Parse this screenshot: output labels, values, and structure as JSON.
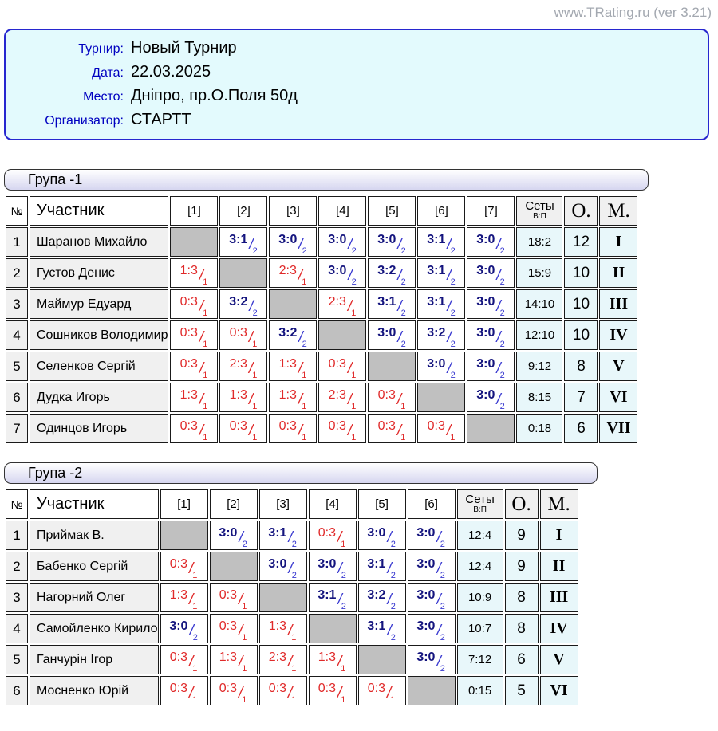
{
  "site": "www.TRating.ru (ver 3.21)",
  "info": {
    "tournament": {
      "label": "Турнир:",
      "value": "Новый Турнир"
    },
    "date": {
      "label": "Дата:",
      "value": "22.03.2025"
    },
    "place": {
      "label": "Место:",
      "value": "Дніпро, пр.О.Поля 50д"
    },
    "organizer": {
      "label": "Организатор:",
      "value": "СТАРТТ"
    }
  },
  "colors": {
    "win_score": "#14147e",
    "win_slash": "#3a3ad0",
    "loss_score": "#e02a2a",
    "diagonal_cell": "#c0c0c0",
    "summary_bg": "#e8f7fa",
    "name_bg": "#f0f0f0",
    "info_bg": "#e3fafd",
    "info_border": "#2727cf",
    "info_label": "#0000c0",
    "site_text": "#a3a8b0"
  },
  "groups": [
    {
      "title": "Група -1",
      "headers": {
        "num": "№",
        "participant": "Участник",
        "matches": [
          "[1]",
          "[2]",
          "[3]",
          "[4]",
          "[5]",
          "[6]",
          "[7]"
        ],
        "sets_main": "Сеты",
        "sets_sub": "В:П",
        "points": "О.",
        "place": "М."
      },
      "rows": [
        {
          "num": "1",
          "name": "Шаранов Михайло",
          "cells": [
            null,
            {
              "score": "3:1",
              "pts": "2",
              "win": true
            },
            {
              "score": "3:0",
              "pts": "2",
              "win": true
            },
            {
              "score": "3:0",
              "pts": "2",
              "win": true
            },
            {
              "score": "3:0",
              "pts": "2",
              "win": true
            },
            {
              "score": "3:1",
              "pts": "2",
              "win": true
            },
            {
              "score": "3:0",
              "pts": "2",
              "win": true
            }
          ],
          "sets": "18:2",
          "points": "12",
          "place": "I"
        },
        {
          "num": "2",
          "name": "Густов Денис",
          "cells": [
            {
              "score": "1:3",
              "pts": "1",
              "win": false
            },
            null,
            {
              "score": "2:3",
              "pts": "1",
              "win": false
            },
            {
              "score": "3:0",
              "pts": "2",
              "win": true
            },
            {
              "score": "3:2",
              "pts": "2",
              "win": true
            },
            {
              "score": "3:1",
              "pts": "2",
              "win": true
            },
            {
              "score": "3:0",
              "pts": "2",
              "win": true
            }
          ],
          "sets": "15:9",
          "points": "10",
          "place": "II"
        },
        {
          "num": "3",
          "name": "Маймур Едуард",
          "cells": [
            {
              "score": "0:3",
              "pts": "1",
              "win": false
            },
            {
              "score": "3:2",
              "pts": "2",
              "win": true
            },
            null,
            {
              "score": "2:3",
              "pts": "1",
              "win": false
            },
            {
              "score": "3:1",
              "pts": "2",
              "win": true
            },
            {
              "score": "3:1",
              "pts": "2",
              "win": true
            },
            {
              "score": "3:0",
              "pts": "2",
              "win": true
            }
          ],
          "sets": "14:10",
          "points": "10",
          "place": "III"
        },
        {
          "num": "4",
          "name": "Сошников Володимир",
          "cells": [
            {
              "score": "0:3",
              "pts": "1",
              "win": false
            },
            {
              "score": "0:3",
              "pts": "1",
              "win": false
            },
            {
              "score": "3:2",
              "pts": "2",
              "win": true
            },
            null,
            {
              "score": "3:0",
              "pts": "2",
              "win": true
            },
            {
              "score": "3:2",
              "pts": "2",
              "win": true
            },
            {
              "score": "3:0",
              "pts": "2",
              "win": true
            }
          ],
          "sets": "12:10",
          "points": "10",
          "place": "IV"
        },
        {
          "num": "5",
          "name": "Селенков Сергій",
          "cells": [
            {
              "score": "0:3",
              "pts": "1",
              "win": false
            },
            {
              "score": "2:3",
              "pts": "1",
              "win": false
            },
            {
              "score": "1:3",
              "pts": "1",
              "win": false
            },
            {
              "score": "0:3",
              "pts": "1",
              "win": false
            },
            null,
            {
              "score": "3:0",
              "pts": "2",
              "win": true
            },
            {
              "score": "3:0",
              "pts": "2",
              "win": true
            }
          ],
          "sets": "9:12",
          "points": "8",
          "place": "V"
        },
        {
          "num": "6",
          "name": "Дудка Игорь",
          "cells": [
            {
              "score": "1:3",
              "pts": "1",
              "win": false
            },
            {
              "score": "1:3",
              "pts": "1",
              "win": false
            },
            {
              "score": "1:3",
              "pts": "1",
              "win": false
            },
            {
              "score": "2:3",
              "pts": "1",
              "win": false
            },
            {
              "score": "0:3",
              "pts": "1",
              "win": false
            },
            null,
            {
              "score": "3:0",
              "pts": "2",
              "win": true
            }
          ],
          "sets": "8:15",
          "points": "7",
          "place": "VI"
        },
        {
          "num": "7",
          "name": "Одинцов Игорь",
          "cells": [
            {
              "score": "0:3",
              "pts": "1",
              "win": false
            },
            {
              "score": "0:3",
              "pts": "1",
              "win": false
            },
            {
              "score": "0:3",
              "pts": "1",
              "win": false
            },
            {
              "score": "0:3",
              "pts": "1",
              "win": false
            },
            {
              "score": "0:3",
              "pts": "1",
              "win": false
            },
            {
              "score": "0:3",
              "pts": "1",
              "win": false
            },
            null
          ],
          "sets": "0:18",
          "points": "6",
          "place": "VII"
        }
      ]
    },
    {
      "title": "Група -2",
      "headers": {
        "num": "№",
        "participant": "Участник",
        "matches": [
          "[1]",
          "[2]",
          "[3]",
          "[4]",
          "[5]",
          "[6]"
        ],
        "sets_main": "Сеты",
        "sets_sub": "В:П",
        "points": "О.",
        "place": "М."
      },
      "rows": [
        {
          "num": "1",
          "name": "Приймак В.",
          "cells": [
            null,
            {
              "score": "3:0",
              "pts": "2",
              "win": true
            },
            {
              "score": "3:1",
              "pts": "2",
              "win": true
            },
            {
              "score": "0:3",
              "pts": "1",
              "win": false
            },
            {
              "score": "3:0",
              "pts": "2",
              "win": true
            },
            {
              "score": "3:0",
              "pts": "2",
              "win": true
            }
          ],
          "sets": "12:4",
          "points": "9",
          "place": "I"
        },
        {
          "num": "2",
          "name": "Бабенко Сергій",
          "cells": [
            {
              "score": "0:3",
              "pts": "1",
              "win": false
            },
            null,
            {
              "score": "3:0",
              "pts": "2",
              "win": true
            },
            {
              "score": "3:0",
              "pts": "2",
              "win": true
            },
            {
              "score": "3:1",
              "pts": "2",
              "win": true
            },
            {
              "score": "3:0",
              "pts": "2",
              "win": true
            }
          ],
          "sets": "12:4",
          "points": "9",
          "place": "II"
        },
        {
          "num": "3",
          "name": "Нагорний Олег",
          "cells": [
            {
              "score": "1:3",
              "pts": "1",
              "win": false
            },
            {
              "score": "0:3",
              "pts": "1",
              "win": false
            },
            null,
            {
              "score": "3:1",
              "pts": "2",
              "win": true
            },
            {
              "score": "3:2",
              "pts": "2",
              "win": true
            },
            {
              "score": "3:0",
              "pts": "2",
              "win": true
            }
          ],
          "sets": "10:9",
          "points": "8",
          "place": "III"
        },
        {
          "num": "4",
          "name": "Самойленко Кирило",
          "cells": [
            {
              "score": "3:0",
              "pts": "2",
              "win": true
            },
            {
              "score": "0:3",
              "pts": "1",
              "win": false
            },
            {
              "score": "1:3",
              "pts": "1",
              "win": false
            },
            null,
            {
              "score": "3:1",
              "pts": "2",
              "win": true
            },
            {
              "score": "3:0",
              "pts": "2",
              "win": true
            }
          ],
          "sets": "10:7",
          "points": "8",
          "place": "IV"
        },
        {
          "num": "5",
          "name": "Ганчурін Ігор",
          "cells": [
            {
              "score": "0:3",
              "pts": "1",
              "win": false
            },
            {
              "score": "1:3",
              "pts": "1",
              "win": false
            },
            {
              "score": "2:3",
              "pts": "1",
              "win": false
            },
            {
              "score": "1:3",
              "pts": "1",
              "win": false
            },
            null,
            {
              "score": "3:0",
              "pts": "2",
              "win": true
            }
          ],
          "sets": "7:12",
          "points": "6",
          "place": "V"
        },
        {
          "num": "6",
          "name": "Мосненко Юрій",
          "cells": [
            {
              "score": "0:3",
              "pts": "1",
              "win": false
            },
            {
              "score": "0:3",
              "pts": "1",
              "win": false
            },
            {
              "score": "0:3",
              "pts": "1",
              "win": false
            },
            {
              "score": "0:3",
              "pts": "1",
              "win": false
            },
            {
              "score": "0:3",
              "pts": "1",
              "win": false
            },
            null
          ],
          "sets": "0:15",
          "points": "5",
          "place": "VI"
        }
      ]
    }
  ]
}
